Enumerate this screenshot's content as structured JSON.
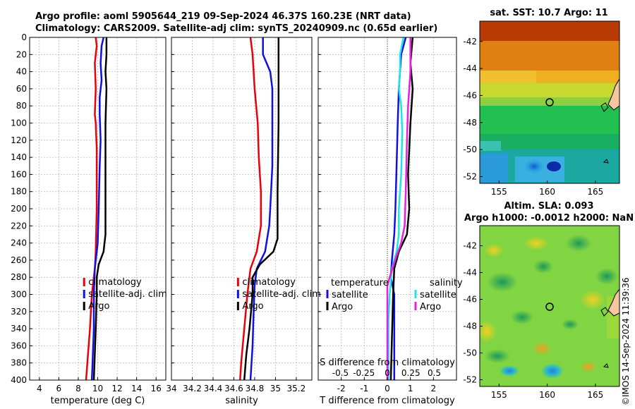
{
  "header": {
    "line1": "Argo profile: aoml 5905644_219 09-Sep-2024 46.37S 160.23E (NRT data)",
    "line2": "Climatology: CARS2009. Satellite-adj clim: synTS_20240909.nc (0.65d earlier)"
  },
  "credit": "©IMOS 14-Sep-2024 11:39:36",
  "colors": {
    "climatology": "#e8000b",
    "satellite": "#1010e0",
    "argo": "#000000",
    "sal_satellite": "#1ee4e4",
    "sal_argo": "#e81ee0"
  },
  "chart_data": [
    {
      "type": "line",
      "name": "temperature",
      "xlabel": "temperature (deg C)",
      "ylabel": "depth",
      "xlim": [
        3,
        17
      ],
      "ylim": [
        0,
        400
      ],
      "xticks": [
        4,
        6,
        8,
        10,
        12,
        14,
        16
      ],
      "yticks": [
        0,
        20,
        40,
        60,
        80,
        100,
        120,
        140,
        160,
        180,
        200,
        220,
        240,
        260,
        280,
        300,
        320,
        340,
        360,
        380,
        400
      ],
      "legend": [
        "climatology",
        "satellite-adj. clim",
        "Argo"
      ],
      "series": [
        {
          "name": "climatology",
          "color": "#e8000b",
          "points": [
            [
              9.8,
              0
            ],
            [
              9.9,
              10
            ],
            [
              9.7,
              30
            ],
            [
              9.8,
              60
            ],
            [
              9.7,
              90
            ],
            [
              9.8,
              100
            ],
            [
              9.9,
              130
            ],
            [
              9.9,
              160
            ],
            [
              9.9,
              200
            ],
            [
              9.8,
              250
            ],
            [
              9.7,
              270
            ],
            [
              9.4,
              300
            ],
            [
              9.2,
              340
            ],
            [
              9.0,
              370
            ],
            [
              8.8,
              400
            ]
          ]
        },
        {
          "name": "satellite-adj. clim",
          "color": "#1010e0",
          "points": [
            [
              10.6,
              0
            ],
            [
              10.4,
              10
            ],
            [
              10.3,
              30
            ],
            [
              10.4,
              50
            ],
            [
              10.2,
              70
            ],
            [
              10.2,
              90
            ],
            [
              10.3,
              120
            ],
            [
              10.2,
              150
            ],
            [
              10.1,
              200
            ],
            [
              10.0,
              240
            ],
            [
              9.7,
              270
            ],
            [
              9.6,
              300
            ],
            [
              9.6,
              340
            ],
            [
              9.5,
              370
            ],
            [
              9.4,
              400
            ]
          ]
        },
        {
          "name": "Argo",
          "color": "#000000",
          "points": [
            [
              10.9,
              0
            ],
            [
              10.9,
              20
            ],
            [
              10.8,
              40
            ],
            [
              10.9,
              60
            ],
            [
              10.8,
              100
            ],
            [
              10.8,
              140
            ],
            [
              10.8,
              180
            ],
            [
              10.8,
              230
            ],
            [
              10.6,
              250
            ],
            [
              10.1,
              265
            ],
            [
              9.9,
              280
            ],
            [
              9.9,
              300
            ],
            [
              9.8,
              340
            ],
            [
              9.6,
              400
            ]
          ]
        }
      ]
    },
    {
      "type": "line",
      "name": "salinity",
      "xlabel": "salinity",
      "ylabel": "depth",
      "xlim": [
        34,
        35.35
      ],
      "ylim": [
        0,
        400
      ],
      "xticks": [
        34,
        34.2,
        34.4,
        34.6,
        34.8,
        35,
        35.2
      ],
      "yticks": [
        0,
        20,
        40,
        60,
        80,
        100,
        120,
        140,
        160,
        180,
        200,
        220,
        240,
        260,
        280,
        300,
        320,
        340,
        360,
        380,
        400
      ],
      "legend": [
        "climatology",
        "satellite-adj. clim",
        "Argo"
      ],
      "series": [
        {
          "name": "climatology",
          "color": "#e8000b",
          "points": [
            [
              34.76,
              0
            ],
            [
              34.78,
              20
            ],
            [
              34.8,
              60
            ],
            [
              34.83,
              100
            ],
            [
              34.84,
              140
            ],
            [
              34.86,
              180
            ],
            [
              34.86,
              220
            ],
            [
              34.82,
              250
            ],
            [
              34.76,
              270
            ],
            [
              34.73,
              300
            ],
            [
              34.7,
              340
            ],
            [
              34.67,
              380
            ],
            [
              34.66,
              400
            ]
          ]
        },
        {
          "name": "satellite-adj. clim",
          "color": "#1010e0",
          "points": [
            [
              34.88,
              0
            ],
            [
              34.88,
              20
            ],
            [
              34.95,
              40
            ],
            [
              34.97,
              60
            ],
            [
              34.97,
              100
            ],
            [
              34.97,
              150
            ],
            [
              34.95,
              200
            ],
            [
              34.94,
              220
            ],
            [
              34.9,
              250
            ],
            [
              34.82,
              270
            ],
            [
              34.8,
              290
            ],
            [
              34.79,
              320
            ],
            [
              34.78,
              360
            ],
            [
              34.76,
              400
            ]
          ]
        },
        {
          "name": "Argo",
          "color": "#000000",
          "points": [
            [
              35.03,
              0
            ],
            [
              35.03,
              100
            ],
            [
              35.02,
              180
            ],
            [
              35.02,
              235
            ],
            [
              34.98,
              250
            ],
            [
              34.85,
              265
            ],
            [
              34.78,
              280
            ],
            [
              34.78,
              300
            ],
            [
              34.75,
              340
            ],
            [
              34.72,
              370
            ],
            [
              34.7,
              400
            ]
          ]
        }
      ]
    },
    {
      "type": "line",
      "name": "difference",
      "xlabel": "T difference from climatology",
      "x2label": "S difference from climatology",
      "xlim": [
        -3,
        3
      ],
      "ylim": [
        0,
        400
      ],
      "xticks": [
        -2,
        -1,
        0,
        1,
        2
      ],
      "x2ticks": [
        {
          "value": -0.5,
          "label": "-0.5"
        },
        {
          "value": -0.25,
          "label": "-0.25"
        },
        {
          "value": 0,
          "label": "0"
        },
        {
          "value": 0.25,
          "label": "0.25"
        },
        {
          "value": 0.5,
          "label": "0.5"
        }
      ],
      "yticks": [
        0,
        20,
        40,
        60,
        80,
        100,
        120,
        140,
        160,
        180,
        200,
        220,
        240,
        260,
        280,
        300,
        320,
        340,
        360,
        380,
        400
      ],
      "legend_temperature": {
        "title": "temperature",
        "items": [
          "satellite",
          "Argo"
        ]
      },
      "legend_salinity": {
        "title": "salinity",
        "items": [
          "satellite",
          "Argo"
        ]
      },
      "series": [
        {
          "name": "temperature satellite",
          "color": "#1010e0",
          "points": [
            [
              0.8,
              0
            ],
            [
              0.6,
              20
            ],
            [
              0.5,
              60
            ],
            [
              0.45,
              100
            ],
            [
              0.4,
              150
            ],
            [
              0.35,
              200
            ],
            [
              0.3,
              230
            ],
            [
              0.2,
              260
            ],
            [
              0.15,
              280
            ],
            [
              0.3,
              300
            ],
            [
              0.3,
              400
            ]
          ]
        },
        {
          "name": "temperature Argo",
          "color": "#000000",
          "points": [
            [
              1.1,
              0
            ],
            [
              1.0,
              30
            ],
            [
              1.1,
              60
            ],
            [
              1.0,
              100
            ],
            [
              0.9,
              160
            ],
            [
              0.95,
              200
            ],
            [
              0.85,
              230
            ],
            [
              0.5,
              250
            ],
            [
              0.3,
              270
            ],
            [
              0.25,
              300
            ],
            [
              0.2,
              350
            ],
            [
              0.15,
              400
            ]
          ]
        },
        {
          "name": "salinity satellite",
          "color": "#1ee4e4",
          "points": [
            [
              0.7,
              0
            ],
            [
              0.55,
              20
            ],
            [
              0.55,
              40
            ],
            [
              0.5,
              60
            ],
            [
              0.6,
              80
            ],
            [
              0.65,
              110
            ],
            [
              0.6,
              160
            ],
            [
              0.5,
              200
            ],
            [
              0.5,
              230
            ],
            [
              0.4,
              250
            ],
            [
              0.2,
              270
            ],
            [
              0.1,
              300
            ],
            [
              0.05,
              330
            ],
            [
              0.05,
              400
            ]
          ]
        },
        {
          "name": "salinity Argo",
          "color": "#e81ee0",
          "points": [
            [
              1.0,
              0
            ],
            [
              1.0,
              40
            ],
            [
              0.9,
              80
            ],
            [
              0.85,
              120
            ],
            [
              0.8,
              180
            ],
            [
              0.75,
              220
            ],
            [
              0.6,
              240
            ],
            [
              0.4,
              255
            ],
            [
              0.1,
              280
            ],
            [
              0.0,
              290
            ],
            [
              0.0,
              320
            ],
            [
              0.0,
              360
            ],
            [
              0.0,
              400
            ]
          ]
        }
      ]
    },
    {
      "type": "heatmap",
      "name": "sat_sst_map",
      "title": "sat. SST: 10.7  Argo: 11",
      "xlim": [
        153,
        167.5
      ],
      "ylim": [
        -52.5,
        -40.5
      ],
      "xticks": [
        155,
        160,
        165
      ],
      "yticks": [
        -42,
        -44,
        -46,
        -48,
        -50,
        -52
      ],
      "marker": {
        "lon": 160.23,
        "lat": -46.37
      }
    },
    {
      "type": "heatmap",
      "name": "altim_sla_map",
      "title": "Altim. SLA: 0.093",
      "subtitle": "Argo h1000: -0.0012  h2000: NaN",
      "xlim": [
        153,
        167.5
      ],
      "ylim": [
        -52.5,
        -40.5
      ],
      "xticks": [
        155,
        160,
        165
      ],
      "yticks": [
        -42,
        -44,
        -46,
        -48,
        -50,
        -52
      ],
      "marker": {
        "lon": 160.23,
        "lat": -46.37
      }
    }
  ]
}
